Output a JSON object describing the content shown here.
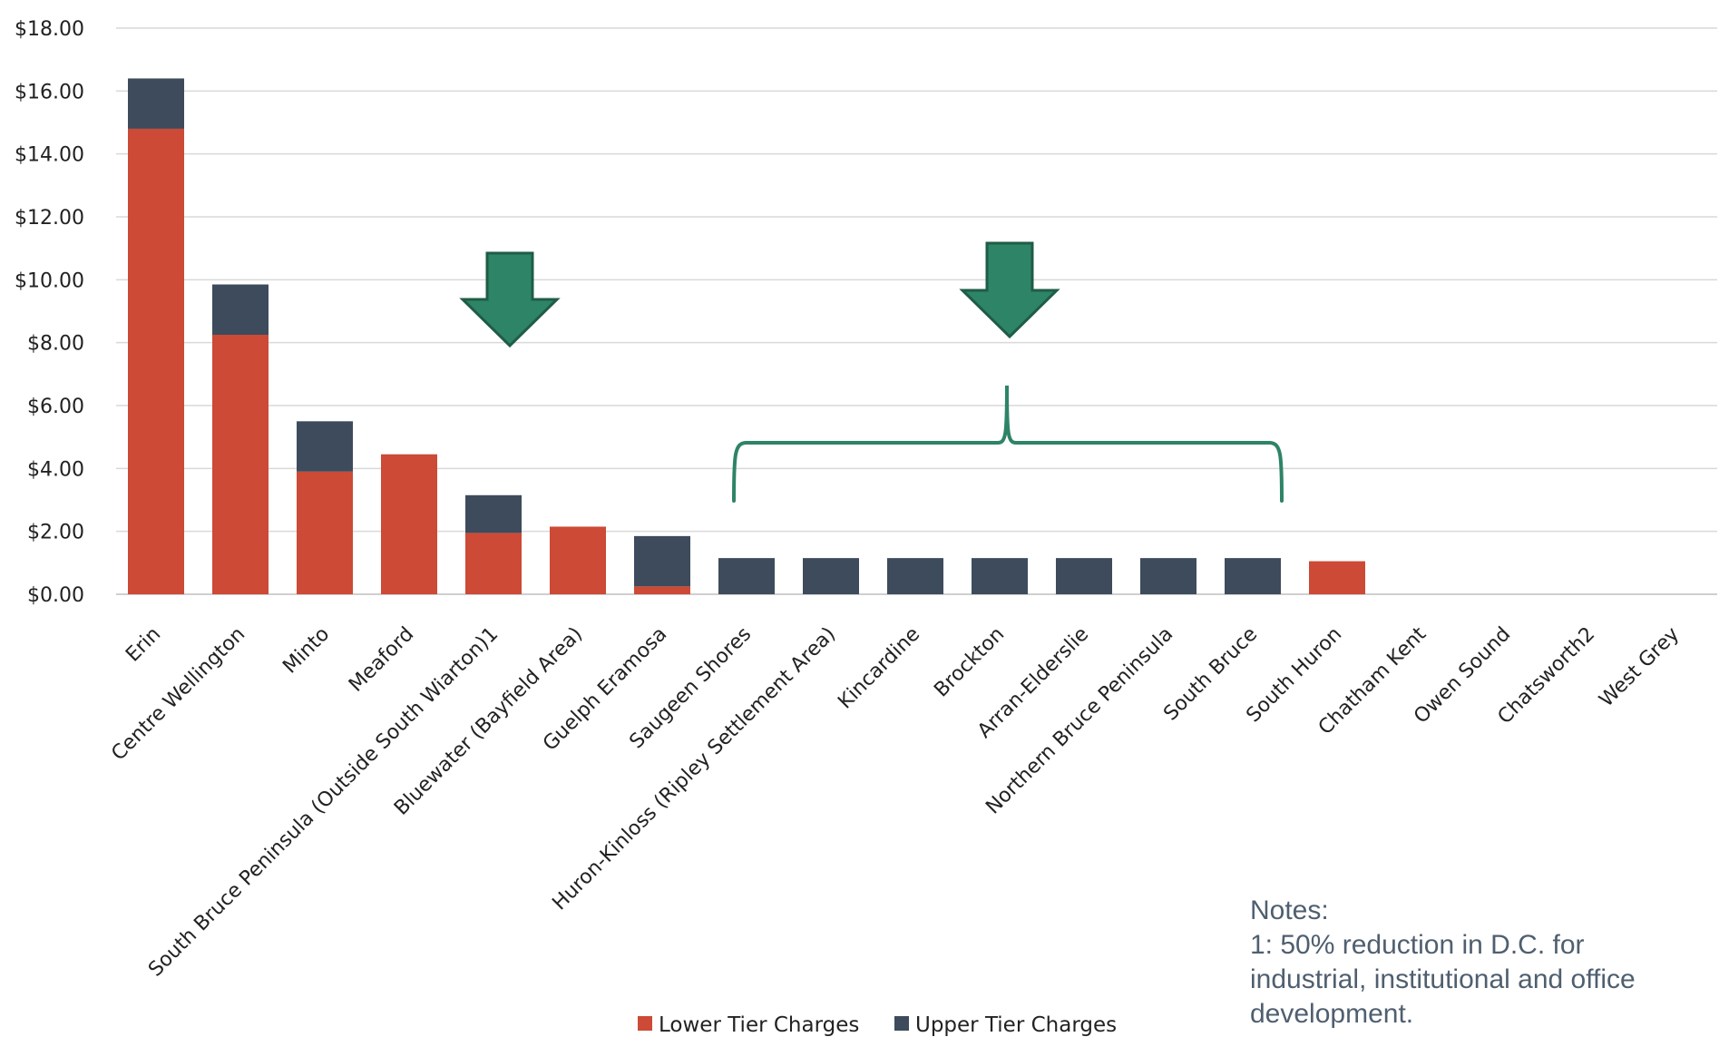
{
  "chart_data": {
    "type": "bar",
    "stacked": true,
    "categories": [
      "Erin",
      "Centre Wellington",
      "Minto",
      "Meaford",
      "South Bruce Peninsula (Outside South Wiarton)1",
      "Bluewater (Bayfield Area)",
      "Guelph Eramosa",
      "Saugeen Shores",
      "Huron-Kinloss (Ripley Settlement Area)",
      "Kincardine",
      "Brockton",
      "Arran-Elderslie",
      "Northern Bruce Peninsula",
      "South Bruce",
      "South Huron",
      "Chatham Kent",
      "Owen Sound",
      "Chatsworth2",
      "West Grey"
    ],
    "series": [
      {
        "name": "Lower Tier Charges",
        "color": "#cc4a36",
        "values": [
          14.8,
          8.25,
          3.9,
          4.45,
          1.95,
          2.15,
          0.25,
          0,
          0,
          0,
          0,
          0,
          0,
          0,
          1.05,
          0,
          0,
          0,
          0
        ]
      },
      {
        "name": "Upper Tier Charges",
        "color": "#3d4b5c",
        "values": [
          1.6,
          1.6,
          1.6,
          0,
          1.2,
          0,
          1.6,
          1.15,
          1.15,
          1.15,
          1.15,
          1.15,
          1.15,
          1.15,
          0,
          0,
          0,
          0,
          0
        ]
      }
    ],
    "yticks": [
      "$0.00",
      "$2.00",
      "$4.00",
      "$6.00",
      "$8.00",
      "$10.00",
      "$12.00",
      "$14.00",
      "$16.00",
      "$18.00"
    ],
    "ylim": [
      0,
      18
    ],
    "grid": true,
    "legend_position": "bottom-center",
    "annotation_color": "#2e8466"
  },
  "notes": {
    "heading": "Notes:",
    "text": "1: 50% reduction in D.C. for industrial, institutional and office development."
  }
}
